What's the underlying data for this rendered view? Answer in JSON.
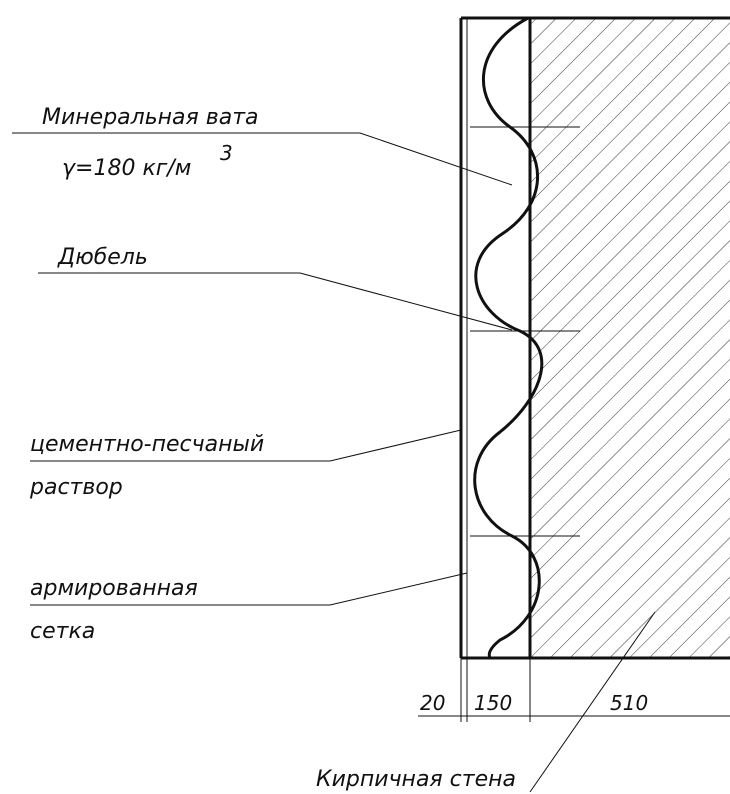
{
  "labels": {
    "mineral_wool": "Минеральная вата",
    "density": "γ=180  кг/м",
    "density_exp": "3",
    "dowel": "Дюбель",
    "mortar_line1": "цементно-песчаный",
    "mortar_line2": "раствор",
    "mesh_line1": "армированная",
    "mesh_line2": "сетка",
    "brick_wall": "Кирпичная стена"
  },
  "dimensions": {
    "mortar": "20",
    "insulation": "150",
    "wall": "510"
  }
}
